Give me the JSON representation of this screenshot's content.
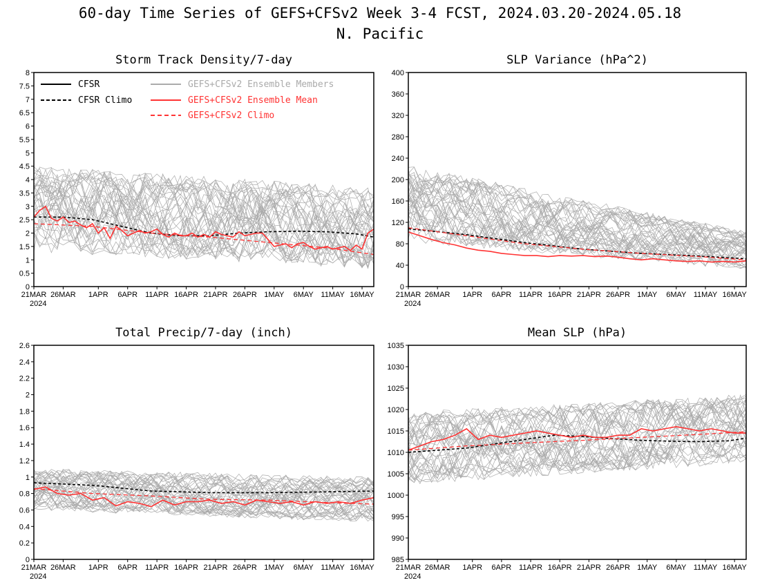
{
  "figure": {
    "title_line1": "60-day Time Series of GEFS+CFSv2 Week 3-4 FCST, 2024.03.20-2024.05.18",
    "title_line2": "N. Pacific"
  },
  "colors": {
    "cfsr": "#000000",
    "members": "#aaaaaa",
    "ens_mean": "#ff3333",
    "axis": "#000000"
  },
  "x_axis": {
    "tick_labels": [
      "21MAR",
      "26MAR",
      "1APR",
      "6APR",
      "11APR",
      "16APR",
      "21APR",
      "26APR",
      "1MAY",
      "6MAY",
      "11MAY",
      "16MAY"
    ],
    "tick_days": [
      0,
      5,
      11,
      16,
      21,
      26,
      31,
      36,
      41,
      46,
      51,
      56
    ],
    "year_label": "2024",
    "range_days": [
      0,
      58
    ]
  },
  "legend": {
    "cfsr": "CFSR",
    "cfsr_climo": "CFSR Climo",
    "members": "GEFS+CFSv2 Ensemble Members",
    "ens_mean": "GEFS+CFSv2 Ensemble Mean",
    "ens_climo": "GEFS+CFSv2 Climo"
  },
  "chart_data": [
    {
      "type": "line",
      "title": "Storm Track Density/7-day",
      "ylim": [
        0,
        8
      ],
      "yticks": [
        "0",
        "0.5",
        "1",
        "1.5",
        "2",
        "2.5",
        "3",
        "3.5",
        "4",
        "4.5",
        "5",
        "5.5",
        "6",
        "6.5",
        "7",
        "7.5",
        "8"
      ],
      "series": [
        {
          "name": "CFSR Climo",
          "style": "black-dashed",
          "x": [
            0,
            5,
            10,
            15,
            20,
            25,
            30,
            35,
            40,
            45,
            50,
            55,
            58
          ],
          "values": [
            2.6,
            2.6,
            2.5,
            2.25,
            2.0,
            1.9,
            1.9,
            2.0,
            2.05,
            2.07,
            2.05,
            1.97,
            1.85
          ]
        },
        {
          "name": "GEFS+CFSv2 Ensemble Mean",
          "style": "red-solid",
          "x": [
            0,
            1,
            2,
            3,
            4,
            5,
            6,
            7,
            8,
            9,
            10,
            11,
            12,
            13,
            14,
            15,
            16,
            17,
            18,
            19,
            20,
            21,
            22,
            23,
            24,
            25,
            26,
            27,
            28,
            29,
            30,
            31,
            32,
            33,
            34,
            35,
            36,
            37,
            38,
            39,
            40,
            41,
            42,
            43,
            44,
            45,
            46,
            47,
            48,
            49,
            50,
            51,
            52,
            53,
            54,
            55,
            56,
            57,
            58
          ],
          "values": [
            2.6,
            2.85,
            3.0,
            2.55,
            2.45,
            2.6,
            2.4,
            2.45,
            2.3,
            2.2,
            2.35,
            2.0,
            2.2,
            1.8,
            2.25,
            2.1,
            1.9,
            2.0,
            2.1,
            2.0,
            2.05,
            2.15,
            1.95,
            1.85,
            2.0,
            1.9,
            1.9,
            2.0,
            1.85,
            1.95,
            1.85,
            2.05,
            1.95,
            1.9,
            1.85,
            2.05,
            1.9,
            1.95,
            2.0,
            2.0,
            1.75,
            1.5,
            1.55,
            1.6,
            1.45,
            1.6,
            1.65,
            1.5,
            1.4,
            1.45,
            1.5,
            1.4,
            1.45,
            1.5,
            1.35,
            1.55,
            1.4,
            2.0,
            2.15
          ]
        },
        {
          "name": "GEFS+CFSv2 Climo",
          "style": "red-dashed",
          "x": [
            0,
            10,
            20,
            30,
            40,
            50,
            58
          ],
          "values": [
            2.35,
            2.25,
            2.0,
            1.85,
            1.65,
            1.45,
            1.2
          ]
        }
      ],
      "members": {
        "count": 40,
        "spread_low": [
          1.0,
          0.4
        ],
        "spread_high": [
          4.8,
          4.0
        ]
      }
    },
    {
      "type": "line",
      "title": "SLP Variance (hPa^2)",
      "ylim": [
        0,
        400
      ],
      "yticks": [
        "0",
        "40",
        "80",
        "120",
        "160",
        "200",
        "240",
        "280",
        "320",
        "360",
        "400"
      ],
      "series": [
        {
          "name": "CFSR Climo",
          "style": "black-dashed",
          "x": [
            0,
            10,
            20,
            30,
            40,
            50,
            58
          ],
          "values": [
            108,
            97,
            82,
            70,
            62,
            57,
            52
          ]
        },
        {
          "name": "GEFS+CFSv2 Ensemble Mean",
          "style": "red-solid",
          "x": [
            0,
            2,
            4,
            6,
            8,
            10,
            12,
            14,
            16,
            18,
            20,
            22,
            24,
            26,
            28,
            30,
            32,
            34,
            36,
            38,
            40,
            42,
            44,
            46,
            48,
            50,
            52,
            54,
            56,
            58
          ],
          "values": [
            102,
            95,
            88,
            82,
            78,
            72,
            68,
            66,
            62,
            60,
            58,
            58,
            56,
            58,
            57,
            58,
            56,
            57,
            55,
            52,
            50,
            52,
            50,
            48,
            47,
            48,
            46,
            47,
            46,
            48
          ]
        },
        {
          "name": "GEFS+CFSv2 Climo",
          "style": "red-dashed",
          "x": [
            0,
            10,
            20,
            30,
            40,
            50,
            58
          ],
          "values": [
            110,
            95,
            80,
            70,
            62,
            56,
            50
          ]
        }
      ],
      "members": {
        "count": 40,
        "spread_low": [
          70,
          25
        ],
        "spread_high": [
          240,
          110
        ]
      }
    },
    {
      "type": "line",
      "title": "Total Precip/7-day (inch)",
      "ylim": [
        0,
        2.6
      ],
      "yticks": [
        "0",
        "0.2",
        "0.4",
        "0.6",
        "0.8",
        "1",
        "1.2",
        "1.4",
        "1.6",
        "1.8",
        "2",
        "2.2",
        "2.4",
        "2.6"
      ],
      "series": [
        {
          "name": "CFSR Climo",
          "style": "black-dashed",
          "x": [
            0,
            10,
            20,
            30,
            40,
            50,
            58
          ],
          "values": [
            0.93,
            0.9,
            0.83,
            0.81,
            0.81,
            0.82,
            0.83
          ]
        },
        {
          "name": "GEFS+CFSv2 Ensemble Mean",
          "style": "red-solid",
          "x": [
            0,
            2,
            4,
            6,
            8,
            10,
            12,
            14,
            16,
            18,
            20,
            22,
            24,
            26,
            28,
            30,
            32,
            34,
            36,
            38,
            40,
            42,
            44,
            46,
            48,
            50,
            52,
            54,
            56,
            58
          ],
          "values": [
            0.85,
            0.88,
            0.8,
            0.78,
            0.8,
            0.72,
            0.75,
            0.65,
            0.7,
            0.68,
            0.64,
            0.72,
            0.66,
            0.7,
            0.7,
            0.72,
            0.68,
            0.7,
            0.66,
            0.72,
            0.7,
            0.68,
            0.7,
            0.66,
            0.7,
            0.68,
            0.7,
            0.68,
            0.72,
            0.75
          ]
        },
        {
          "name": "GEFS+CFSv2 Climo",
          "style": "red-dashed",
          "x": [
            0,
            10,
            20,
            30,
            40,
            50,
            58
          ],
          "values": [
            0.86,
            0.8,
            0.77,
            0.73,
            0.72,
            0.69,
            0.67
          ]
        }
      ],
      "members": {
        "count": 40,
        "spread_low": [
          0.55,
          0.4
        ],
        "spread_high": [
          1.15,
          1.05
        ]
      }
    },
    {
      "type": "line",
      "title": "Mean SLP (hPa)",
      "ylim": [
        985,
        1035
      ],
      "yticks": [
        "985",
        "990",
        "995",
        "1000",
        "1005",
        "1010",
        "1015",
        "1020",
        "1025",
        "1030",
        "1035"
      ],
      "series": [
        {
          "name": "CFSR Climo",
          "style": "black-dashed",
          "x": [
            0,
            10,
            20,
            25,
            30,
            35,
            40,
            45,
            50,
            55,
            58
          ],
          "values": [
            1010,
            1011,
            1013,
            1014,
            1013.7,
            1013.2,
            1012.8,
            1012.6,
            1012.5,
            1012.7,
            1013.3
          ]
        },
        {
          "name": "GEFS+CFSv2 Ensemble Mean",
          "style": "red-solid",
          "x": [
            0,
            2,
            4,
            6,
            8,
            10,
            12,
            14,
            16,
            18,
            20,
            22,
            24,
            26,
            28,
            30,
            32,
            34,
            36,
            38,
            40,
            42,
            44,
            46,
            48,
            50,
            52,
            54,
            56,
            58
          ],
          "values": [
            1010.5,
            1011.5,
            1012.5,
            1013,
            1014,
            1015.5,
            1013,
            1014,
            1013.5,
            1014,
            1014.5,
            1015,
            1014.5,
            1014,
            1013.5,
            1014,
            1013.5,
            1013.5,
            1014,
            1014,
            1015.5,
            1015,
            1015.5,
            1016,
            1015.5,
            1015,
            1015.5,
            1015,
            1014.5,
            1014.5
          ]
        },
        {
          "name": "GEFS+CFSv2 Climo",
          "style": "red-dashed",
          "x": [
            0,
            10,
            20,
            30,
            40,
            50,
            58
          ],
          "values": [
            1010.5,
            1011.5,
            1012.2,
            1012.8,
            1013.5,
            1014.2,
            1014.8
          ]
        }
      ],
      "members": {
        "count": 40,
        "spread_low": [
          1001,
          1006
        ],
        "spread_high": [
          1021,
          1025
        ]
      }
    }
  ]
}
